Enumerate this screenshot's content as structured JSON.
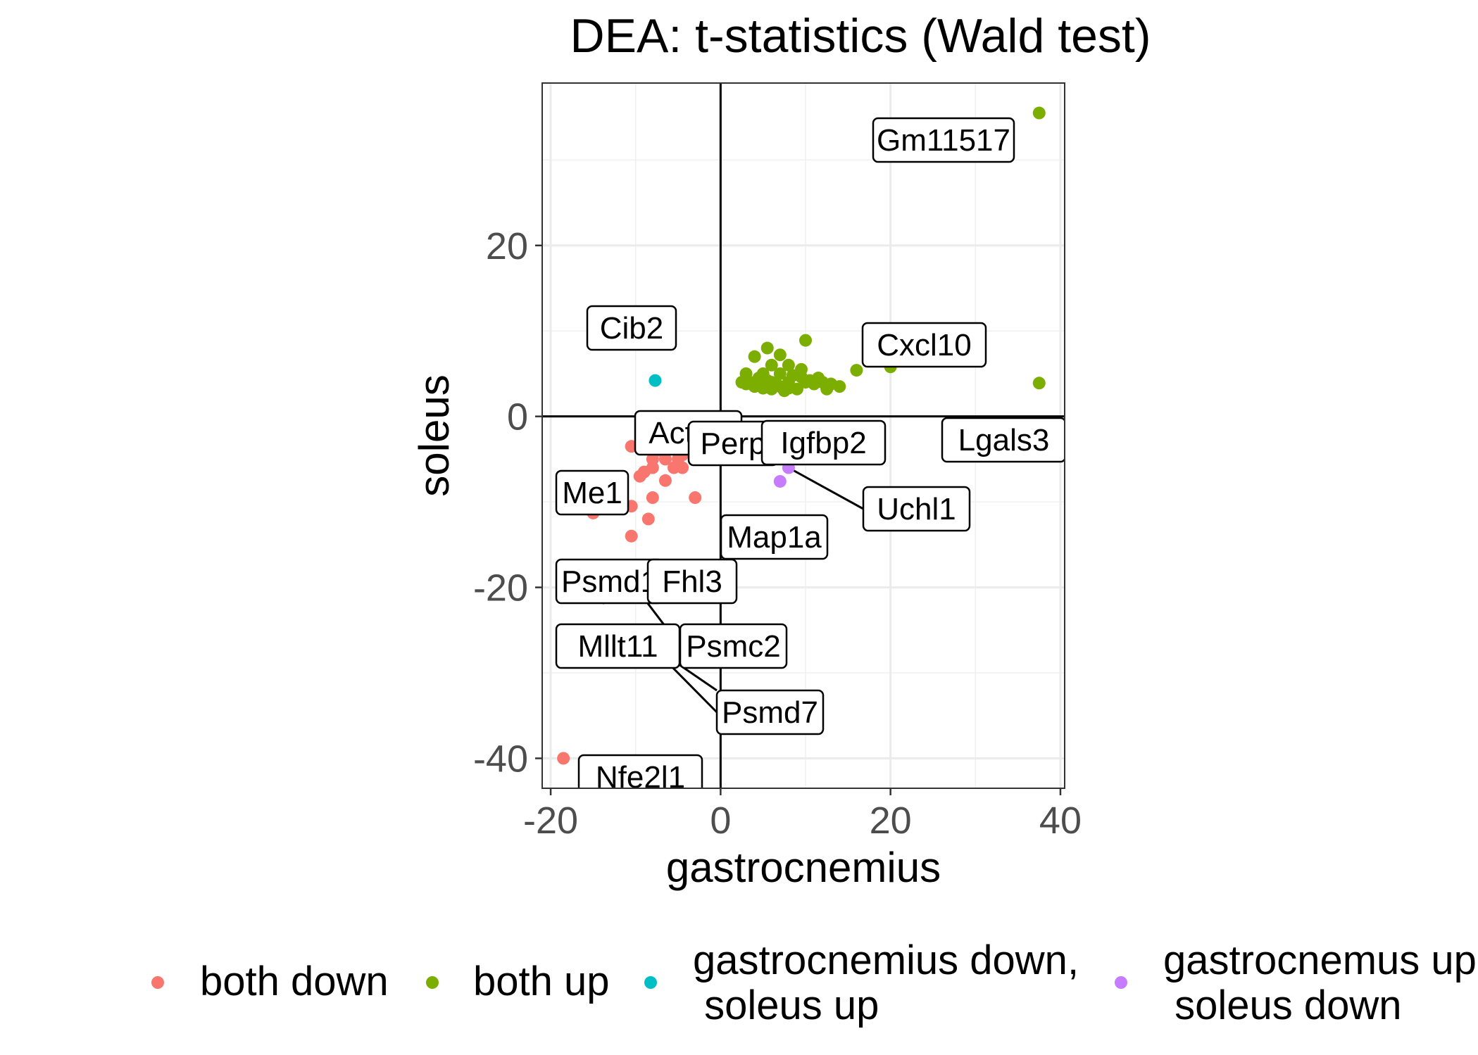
{
  "chart_data": {
    "type": "scatter",
    "title": "DEA: t-statistics (Wald test)",
    "xlabel": "gastrocnemius",
    "ylabel": "soleus",
    "xlim": [
      -21,
      40.5
    ],
    "ylim": [
      -43.5,
      39
    ],
    "x_ticks": [
      -20,
      0,
      20,
      40
    ],
    "y_ticks": [
      -40,
      -20,
      0,
      20
    ],
    "x_tick_labels": [
      "-20",
      "0",
      "20",
      "40"
    ],
    "y_tick_labels": [
      "-40",
      "-20",
      "0",
      "20"
    ],
    "grid": true,
    "reference_lines": {
      "x": 0,
      "y": 0
    },
    "legend_position": "bottom",
    "series": [
      {
        "name": "both down",
        "color": "#F8766D",
        "points": [
          [
            -18.5,
            -40
          ],
          [
            -10,
            -20
          ],
          [
            -10.5,
            -14
          ],
          [
            -15,
            -11.3
          ],
          [
            -11.5,
            -10.8
          ],
          [
            -10.5,
            -10.5
          ],
          [
            -8.5,
            -12
          ],
          [
            -8,
            -9.5
          ],
          [
            -3,
            -9.5
          ],
          [
            -6.5,
            -7.5
          ],
          [
            -5.5,
            -6
          ],
          [
            -9,
            -6.5
          ],
          [
            -8,
            -6
          ],
          [
            -6.5,
            -5
          ],
          [
            -5,
            -5
          ],
          [
            -7,
            -4
          ],
          [
            -5,
            -3.5
          ],
          [
            -4.5,
            -4.5
          ],
          [
            -10.5,
            -3.5
          ],
          [
            -6,
            -3.5
          ],
          [
            -8,
            -5
          ],
          [
            -4.5,
            -6
          ],
          [
            -9.5,
            -7
          ]
        ]
      },
      {
        "name": "both up",
        "color": "#7CAE00",
        "points": [
          [
            37.5,
            35.5
          ],
          [
            26.5,
            6.7
          ],
          [
            20,
            5.8
          ],
          [
            37.5,
            3.9
          ],
          [
            10,
            8.9
          ],
          [
            16,
            5.4
          ],
          [
            5.5,
            8
          ],
          [
            7,
            7.2
          ],
          [
            4,
            7
          ],
          [
            6,
            6
          ],
          [
            8,
            6
          ],
          [
            9.5,
            5.5
          ],
          [
            3,
            5
          ],
          [
            5,
            5
          ],
          [
            7,
            5
          ],
          [
            4,
            4
          ],
          [
            6,
            4
          ],
          [
            8,
            4
          ],
          [
            10,
            4
          ],
          [
            12,
            4
          ],
          [
            13,
            3.8
          ],
          [
            14,
            3.5
          ],
          [
            11,
            3.8
          ],
          [
            9,
            3.2
          ],
          [
            7,
            3.5
          ],
          [
            5,
            3.3
          ],
          [
            3,
            3.8
          ],
          [
            4.5,
            4.5
          ],
          [
            6.5,
            3.8
          ],
          [
            8.5,
            4.8
          ],
          [
            10.5,
            4.2
          ],
          [
            12.5,
            3.2
          ],
          [
            7.5,
            3
          ],
          [
            2.5,
            4
          ],
          [
            11.5,
            4.5
          ],
          [
            5.5,
            4.2
          ],
          [
            4,
            3.5
          ],
          [
            6,
            3.2
          ],
          [
            8,
            3.3
          ],
          [
            9.5,
            4.6
          ]
        ]
      },
      {
        "name": "gastrocnemius down,\n soleus up",
        "color": "#00BFC4",
        "points": [
          [
            -8,
            8.6
          ],
          [
            -7.7,
            4.2
          ]
        ]
      },
      {
        "name": "gastrocnemus up\n soleus down",
        "color": "#C77CFF",
        "points": [
          [
            6,
            -4.8
          ],
          [
            7,
            -4.3
          ],
          [
            7.4,
            -3.6
          ],
          [
            8,
            -6
          ],
          [
            7,
            -7.6
          ]
        ]
      }
    ],
    "labels": [
      {
        "text": "Gm11517",
        "x": 37.5,
        "y": 35.5
      },
      {
        "text": "Cib2",
        "x": -8,
        "y": 8.6
      },
      {
        "text": "Cxcl10",
        "x": 26.5,
        "y": 6.7
      },
      {
        "text": "Acta2",
        "x": -7.7,
        "y": 4.2
      },
      {
        "text": "Perp",
        "x": 7,
        "y": -4.3
      },
      {
        "text": "Igfbp2",
        "x": 7.4,
        "y": -3.6
      },
      {
        "text": "Lgals3",
        "x": 37.5,
        "y": 3.9
      },
      {
        "text": "Me1",
        "x": -9,
        "y": -6.5
      },
      {
        "text": "Uchl1",
        "x": 8,
        "y": -6
      },
      {
        "text": "Map1a",
        "x": 7,
        "y": -7.6
      },
      {
        "text": "Psmd1",
        "x": -10.5,
        "y": -14
      },
      {
        "text": "Fhl3",
        "x": -10.5,
        "y": -14
      },
      {
        "text": "Psmc2",
        "x": -10,
        "y": -20
      },
      {
        "text": "Mllt11",
        "x": -15,
        "y": -19
      },
      {
        "text": "Psmd7",
        "x": -10,
        "y": -25
      },
      {
        "text": "Nfe2l1",
        "x": -18.5,
        "y": -40
      }
    ]
  }
}
